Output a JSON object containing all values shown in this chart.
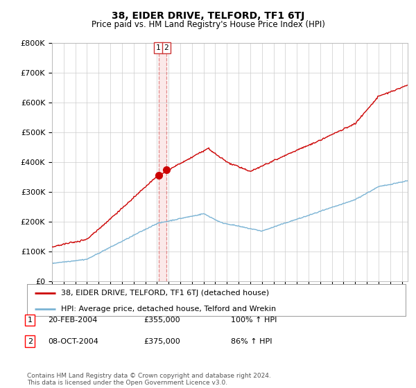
{
  "title": "38, EIDER DRIVE, TELFORD, TF1 6TJ",
  "subtitle": "Price paid vs. HM Land Registry's House Price Index (HPI)",
  "ylim": [
    0,
    800000
  ],
  "xlim_start": 1995.0,
  "xlim_end": 2025.5,
  "hpi_color": "#7ab3d4",
  "price_color": "#cc0000",
  "dashed_color": "#e88080",
  "transaction1": {
    "date_label": "20-FEB-2004",
    "price": "£355,000",
    "pct": "100% ↑ HPI",
    "num": "1",
    "year": 2004.13
  },
  "transaction2": {
    "date_label": "08-OCT-2004",
    "price": "£375,000",
    "pct": "86% ↑ HPI",
    "num": "2",
    "year": 2004.79
  },
  "legend_label_red": "38, EIDER DRIVE, TELFORD, TF1 6TJ (detached house)",
  "legend_label_blue": "HPI: Average price, detached house, Telford and Wrekin",
  "footnote": "Contains HM Land Registry data © Crown copyright and database right 2024.\nThis data is licensed under the Open Government Licence v3.0.",
  "background_color": "#ffffff",
  "grid_color": "#cccccc"
}
